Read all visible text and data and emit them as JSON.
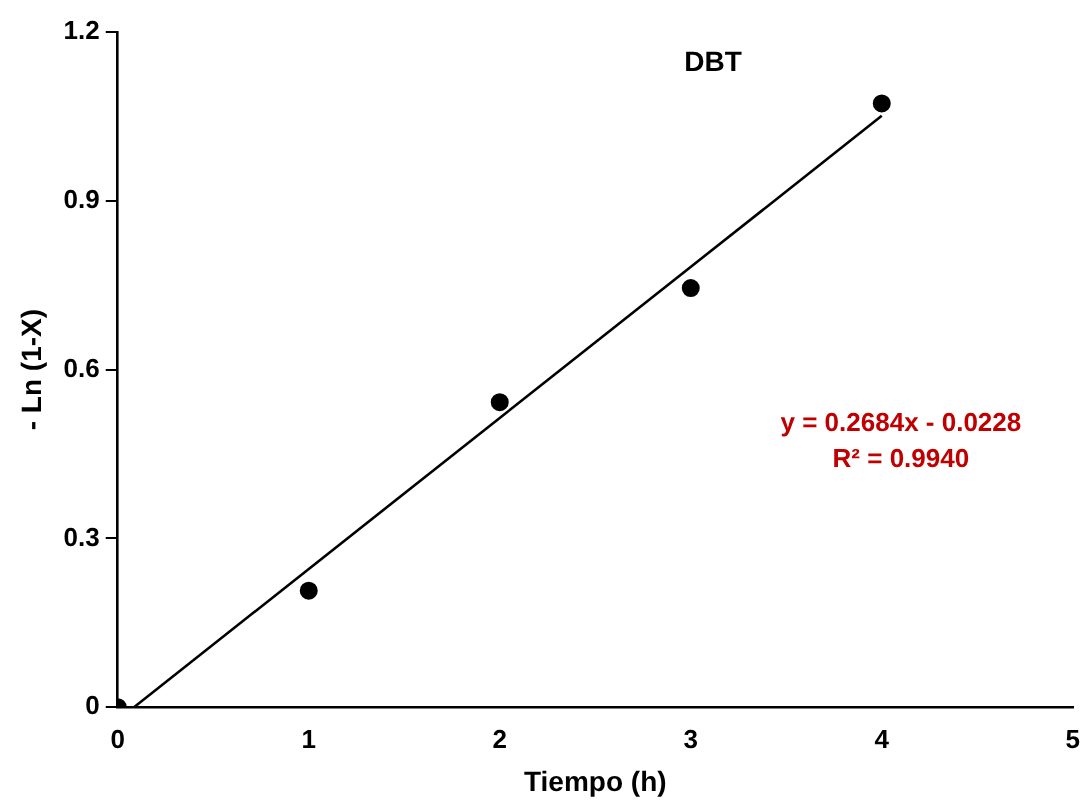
{
  "chart_data": {
    "type": "scatter",
    "xlabel": "Tiempo (h)",
    "ylabel": "- Ln (1-X)",
    "x": [
      0,
      1,
      2,
      3,
      4
    ],
    "series": [
      {
        "name": "DBT",
        "type": "scatter",
        "color": "#000000",
        "marker": "circle",
        "values": [
          0,
          0.207,
          0.542,
          0.745,
          1.073
        ]
      },
      {
        "type": "line",
        "color": "#000000",
        "marker": "none",
        "line_style": "solid",
        "x": [
          0.085,
          4
        ],
        "values": [
          0,
          1.051
        ]
      }
    ],
    "annotations": [
      "y = 0.2684x - 0.0228",
      "R² = 0.9940"
    ],
    "xlim": [
      0,
      5
    ],
    "xticks": [
      0,
      1,
      2,
      3,
      4,
      5
    ],
    "ylim": [
      0,
      1.2
    ],
    "yticks": [
      0,
      0.3,
      0.6,
      0.9,
      1.2
    ],
    "grid": false,
    "legend": false
  }
}
